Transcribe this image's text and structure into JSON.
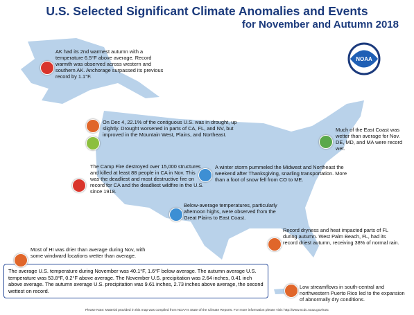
{
  "header": {
    "title_line1": "U.S. Selected Significant Climate Anomalies and Events",
    "title_line2": "for November and Autumn 2018"
  },
  "logo": {
    "text": "NOAA"
  },
  "annotations": [
    {
      "text": "AK had its 2nd warmest autumn with a temperature 6.5°F above average. Record warmth was observed across western and southern AK. Anchorage surpassed its previous record by 1.1°F."
    },
    {
      "text": "On Dec 4, 22.1% of the contiguous U.S. was in drought, up slightly. Drought worsened in parts of CA, FL, and NV, but improved in the Mountain West, Plains, and Northeast."
    },
    {
      "text": "Much of the East Coast was wetter than average for Nov. DE, MD, and MA were record wet."
    },
    {
      "text": "The Camp Fire destroyed over 15,000 structures and killed at least 88 people in CA in Nov. This was the deadliest and most destructive fire on record for CA and the deadliest wildfire in the U.S. since 1918."
    },
    {
      "text": "A winter storm pummeled the Midwest and Northeast the weekend after Thanksgiving, snarling transportation. More than a foot of snow fell from CO to ME."
    },
    {
      "text": "Below-average temperatures, particularly afternoon highs, were observed from the Great Plains to East Coast."
    },
    {
      "text": "Record dryness and heat impacted parts of FL during autumn. West Palm Beach, FL, had its record driest autumn, receiving 38% of normal rain."
    },
    {
      "text": "Most of HI was drier than average during Nov, with some windward locations wetter than average."
    },
    {
      "text": "Low streamflows in south-central and northwestern Puerto Rico led to the expansion of abnormally dry conditions."
    }
  ],
  "summary": "The average U.S. temperature during November was 40.1°F, 1.6°F below average. The autumn average U.S. temperature was 53.8°F, 0.2°F above average. The November U.S. precipitation was 2.64 inches, 0.41 inch above average. The autumn average U.S. precipitation was 9.61 inches, 2.73 inches above average, the second wettest on record.",
  "footer": "Please Note: Material provided in this map was compiled from NOAA's State of the Climate Reports. For more information please visit: http://www.ncdc.noaa.gov/sotc"
}
